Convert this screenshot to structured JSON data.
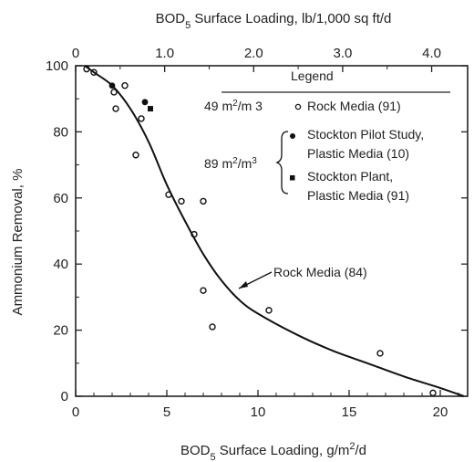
{
  "chart_data": {
    "type": "scatter",
    "xlabel": "BOD",
    "xlabel_sub": "5",
    "xlabel_rest": " Surface Loading, g/m",
    "xlabel_sup": "2",
    "xlabel_end": "/d",
    "top_xlabel": "BOD",
    "top_xlabel_sub": "5",
    "top_xlabel_rest": "  Surface Loading, lb/1,000 sq ft/d",
    "ylabel": "Ammonium Removal, %",
    "xlim": [
      0,
      21.5
    ],
    "ylim": [
      0,
      100
    ],
    "x_ticks": [
      0,
      5,
      10,
      15,
      20
    ],
    "x_tick_labels": [
      "0",
      "5",
      "10",
      "15",
      "20"
    ],
    "y_ticks": [
      0,
      20,
      40,
      60,
      80,
      100
    ],
    "y_tick_labels": [
      "0",
      "20",
      "40",
      "60",
      "80",
      "100"
    ],
    "top_ticks": [
      0,
      1.0,
      2.0,
      3.0,
      4.0
    ],
    "top_tick_labels": [
      "0",
      "1.0",
      "2.0",
      "3.0",
      "4.0"
    ],
    "top_scale_g_per_lb": 4.882,
    "legend": {
      "title": "Legend",
      "group1_label": "49 m",
      "group1_sup": "2",
      "group1_label2": "/m 3",
      "group2_label": "89 m",
      "group2_sup": "2",
      "group2_label2": "/m",
      "group2_sup2": "3",
      "entries": [
        {
          "marker": "open-circle",
          "lines": [
            "Rock Media (91)"
          ]
        },
        {
          "marker": "filled-circle",
          "lines": [
            "Stockton Pilot Study,",
            "Plastic Media (10)"
          ]
        },
        {
          "marker": "filled-square",
          "lines": [
            "Stockton Plant,",
            "Plastic Media (91)"
          ]
        }
      ]
    },
    "curve_label": "Rock Media (84)",
    "series": [
      {
        "name": "Rock Media (91)",
        "marker": "open-circle",
        "points": [
          {
            "x": 0.6,
            "y": 99
          },
          {
            "x": 1.0,
            "y": 98
          },
          {
            "x": 2.1,
            "y": 92
          },
          {
            "x": 2.2,
            "y": 87
          },
          {
            "x": 2.7,
            "y": 94
          },
          {
            "x": 3.3,
            "y": 73
          },
          {
            "x": 3.6,
            "y": 84
          },
          {
            "x": 5.1,
            "y": 61
          },
          {
            "x": 5.8,
            "y": 59
          },
          {
            "x": 6.5,
            "y": 49
          },
          {
            "x": 7.0,
            "y": 59
          },
          {
            "x": 7.0,
            "y": 32
          },
          {
            "x": 7.5,
            "y": 21
          },
          {
            "x": 10.6,
            "y": 26
          },
          {
            "x": 16.7,
            "y": 13
          },
          {
            "x": 19.6,
            "y": 1
          }
        ]
      },
      {
        "name": "Stockton Pilot Study, Plastic Media (10)",
        "marker": "filled-circle",
        "points": [
          {
            "x": 2.0,
            "y": 94
          },
          {
            "x": 3.8,
            "y": 89
          }
        ]
      },
      {
        "name": "Stockton Plant, Plastic Media (91)",
        "marker": "filled-square",
        "points": [
          {
            "x": 4.1,
            "y": 87
          }
        ]
      },
      {
        "name": "Rock Media (84)",
        "type": "line",
        "points": [
          {
            "x": 0.5,
            "y": 100
          },
          {
            "x": 1.0,
            "y": 98
          },
          {
            "x": 2.0,
            "y": 94
          },
          {
            "x": 3.0,
            "y": 87
          },
          {
            "x": 4.0,
            "y": 77
          },
          {
            "x": 5.0,
            "y": 64
          },
          {
            "x": 6.0,
            "y": 53
          },
          {
            "x": 7.0,
            "y": 43
          },
          {
            "x": 8.0,
            "y": 35
          },
          {
            "x": 9.0,
            "y": 29
          },
          {
            "x": 10.0,
            "y": 25
          },
          {
            "x": 12.0,
            "y": 19
          },
          {
            "x": 14.0,
            "y": 14
          },
          {
            "x": 16.0,
            "y": 10
          },
          {
            "x": 18.0,
            "y": 6
          },
          {
            "x": 20.0,
            "y": 2.5
          },
          {
            "x": 21.3,
            "y": 0
          }
        ]
      }
    ]
  }
}
